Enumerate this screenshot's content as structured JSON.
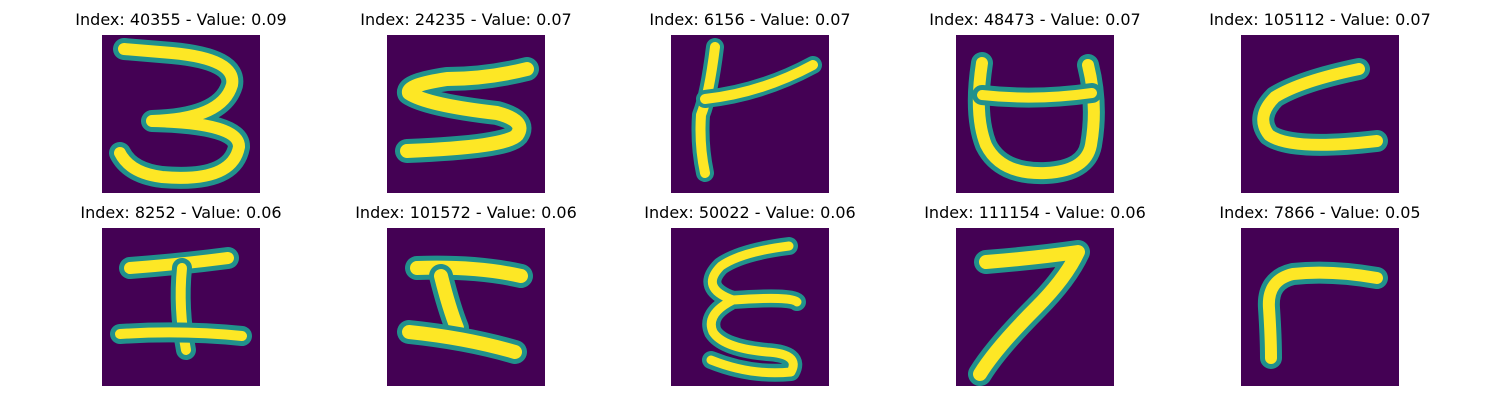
{
  "colors": {
    "background": "#440154",
    "edge": "#21918c",
    "edge2": "#5ec962",
    "core": "#fde725"
  },
  "panels": [
    {
      "title": "Index: 40355 - Value: 0.09",
      "glyph": "digit-3-icon"
    },
    {
      "title": "Index: 24235 - Value: 0.07",
      "glyph": "glyph-s-icon"
    },
    {
      "title": "Index: 6156 - Value: 0.07",
      "glyph": "glyph-cross-icon"
    },
    {
      "title": "Index: 48473 - Value: 0.07",
      "glyph": "glyph-cup-icon"
    },
    {
      "title": "Index: 105112 - Value: 0.07",
      "glyph": "glyph-c-icon"
    },
    {
      "title": "Index: 8252 - Value: 0.06",
      "glyph": "glyph-i-icon"
    },
    {
      "title": "Index: 101572 - Value: 0.06",
      "glyph": "glyph-z-icon"
    },
    {
      "title": "Index: 50022 - Value: 0.06",
      "glyph": "glyph-xi-icon"
    },
    {
      "title": "Index: 111154 - Value: 0.06",
      "glyph": "digit-7-icon"
    },
    {
      "title": "Index: 7866 - Value: 0.05",
      "glyph": "glyph-gamma-icon"
    }
  ]
}
